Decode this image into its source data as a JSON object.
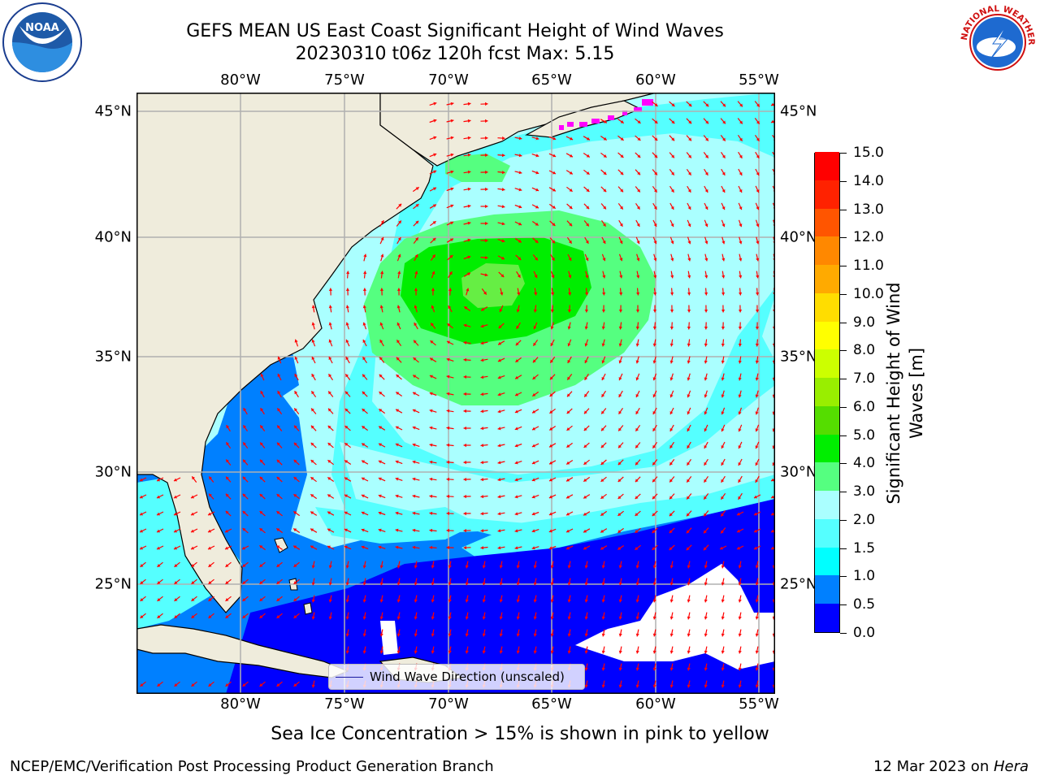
{
  "header": {
    "title_line1": "GEFS MEAN US East Coast Significant Height of Wind Waves",
    "title_line2": "20230310 t06z 120h fcst   Max: 5.15"
  },
  "logos": {
    "left": {
      "icon": "noaa-logo",
      "text": "NOAA"
    },
    "right": {
      "icon": "nws-logo",
      "text": "NATIONAL WEATHER SERVICE"
    }
  },
  "map": {
    "lon_labels": [
      "80°W",
      "75°W",
      "70°W",
      "65°W",
      "60°W",
      "55°W"
    ],
    "lat_labels": [
      "45°N",
      "40°N",
      "35°N",
      "30°N",
      "25°N"
    ],
    "extent": {
      "lon_min": -85,
      "lon_max": -54.2,
      "lat_min": 20.5,
      "lat_max": 46
    },
    "land_color": "#efecdc",
    "arrow_color": "#ff0000",
    "gridline_color": "#b0b0b0"
  },
  "legend": {
    "label": "Wind Wave Direction (unscaled)"
  },
  "colorbar": {
    "title_line1": "Significant Height of Wind",
    "title_line2": "Waves [m]",
    "ticks": [
      "0.0",
      "0.5",
      "1.0",
      "1.5",
      "2.0",
      "3.0",
      "4.0",
      "5.0",
      "6.0",
      "7.0",
      "8.0",
      "9.0",
      "10.0",
      "11.0",
      "12.0",
      "13.0",
      "14.0",
      "15.0"
    ],
    "colors": [
      "#0000ff",
      "#0080ff",
      "#00ffff",
      "#55ffff",
      "#aaffff",
      "#55ff80",
      "#00ee00",
      "#55dd00",
      "#99ee00",
      "#ccff00",
      "#ffff00",
      "#ffdd00",
      "#ffaa00",
      "#ff8800",
      "#ff5500",
      "#ff2200",
      "#ff0000"
    ]
  },
  "footer": {
    "ice_note": "Sea Ice Concentration > 15% is shown in pink to yellow",
    "credit": "NCEP/EMC/Verification Post Processing Product Generation Branch",
    "date": "12 Mar 2023 on ",
    "host": "Hera"
  }
}
